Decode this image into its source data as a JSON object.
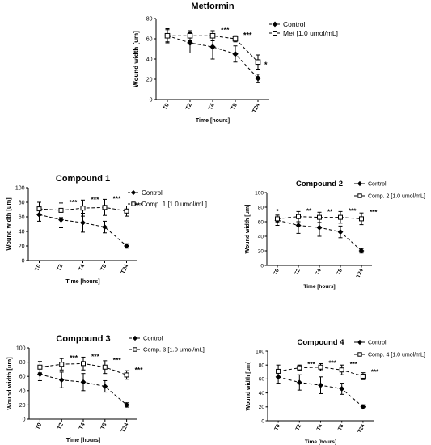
{
  "chart_data": [
    {
      "type": "line",
      "title": "Metformin",
      "xlabel": "Time [hours]",
      "ylabel": "Wound width [um]",
      "categories": [
        "T0",
        "T2",
        "T4",
        "T8",
        "T24"
      ],
      "ylim": [
        0,
        80
      ],
      "yticks": [
        0,
        20,
        40,
        60,
        80
      ],
      "legend_placement": "top-right",
      "series": [
        {
          "name": "Control",
          "marker": "diamond",
          "values": [
            63,
            56,
            52,
            45,
            21
          ],
          "errors": [
            7,
            10,
            12,
            8,
            4
          ]
        },
        {
          "name": "Met [1.0 umol/mL]",
          "marker": "square",
          "values": [
            63,
            63,
            63,
            60,
            37
          ],
          "errors": [
            6,
            5,
            5,
            3,
            7
          ]
        }
      ],
      "significance": [
        "",
        "",
        "***",
        "***",
        "*"
      ]
    },
    {
      "type": "line",
      "title": "Compound 1",
      "xlabel": "Time [hours]",
      "ylabel": "Wound width [um]",
      "categories": [
        "T0",
        "T2",
        "T4",
        "T8",
        "T24"
      ],
      "ylim": [
        0,
        100
      ],
      "yticks": [
        0,
        20,
        40,
        60,
        80,
        100
      ],
      "legend_placement": "top-right",
      "series": [
        {
          "name": "Control",
          "marker": "diamond",
          "values": [
            63,
            56,
            52,
            46,
            20
          ],
          "errors": [
            9,
            11,
            13,
            8,
            3
          ]
        },
        {
          "name": "Comp. 1 [1.0 umol/mL]",
          "marker": "square",
          "values": [
            71,
            69,
            72,
            73,
            68
          ],
          "errors": [
            9,
            10,
            11,
            11,
            7
          ]
        }
      ],
      "significance": [
        "",
        "***",
        "***",
        "***",
        "***"
      ]
    },
    {
      "type": "line",
      "title": "Compound 2",
      "xlabel": "Time [hours]",
      "ylabel": "Wound width [um]",
      "categories": [
        "T0",
        "T2",
        "T4",
        "T8",
        "T24"
      ],
      "ylim": [
        0,
        100
      ],
      "yticks": [
        0,
        20,
        40,
        60,
        80,
        100
      ],
      "legend_placement": "top-right",
      "series": [
        {
          "name": "Control",
          "marker": "diamond",
          "values": [
            62,
            55,
            52,
            46,
            20
          ],
          "errors": [
            7,
            11,
            12,
            8,
            3
          ]
        },
        {
          "name": "Comp. 2 [1.0 umol/mL]",
          "marker": "square",
          "values": [
            64,
            67,
            66,
            66,
            64
          ],
          "errors": [
            5,
            7,
            7,
            8,
            8
          ]
        }
      ],
      "significance": [
        "*",
        "**",
        "**",
        "***",
        "***"
      ]
    },
    {
      "type": "line",
      "title": "Compound 3",
      "xlabel": "Time [hours]",
      "ylabel": "Wound width [um]",
      "categories": [
        "T0",
        "T2",
        "T4",
        "T8",
        "T24"
      ],
      "ylim": [
        0,
        100
      ],
      "yticks": [
        0,
        20,
        40,
        60,
        80,
        100
      ],
      "legend_placement": "top-right",
      "series": [
        {
          "name": "Control",
          "marker": "diamond",
          "values": [
            63,
            55,
            52,
            46,
            20
          ],
          "errors": [
            9,
            11,
            12,
            8,
            3
          ]
        },
        {
          "name": "Comp. 3 [1.0 umol/mL]",
          "marker": "square",
          "values": [
            73,
            77,
            78,
            73,
            62
          ],
          "errors": [
            8,
            8,
            9,
            9,
            6
          ]
        }
      ],
      "significance": [
        "",
        "***",
        "***",
        "***",
        "***"
      ]
    },
    {
      "type": "line",
      "title": "Compound 4",
      "xlabel": "Time [hours]",
      "ylabel": "Wound width [um]",
      "categories": [
        "T0",
        "T2",
        "T4",
        "T8",
        "T24"
      ],
      "ylim": [
        0,
        100
      ],
      "yticks": [
        0,
        20,
        40,
        60,
        80,
        100
      ],
      "legend_placement": "top-right",
      "series": [
        {
          "name": "Control",
          "marker": "diamond",
          "values": [
            63,
            55,
            51,
            46,
            20
          ],
          "errors": [
            9,
            11,
            12,
            8,
            3
          ]
        },
        {
          "name": "Comp. 4 [1.0 umol/mL]",
          "marker": "square",
          "values": [
            71,
            76,
            77,
            73,
            64
          ],
          "errors": [
            9,
            4,
            5,
            7,
            5
          ]
        }
      ],
      "significance": [
        "",
        "***",
        "***",
        "***",
        "***"
      ]
    }
  ]
}
